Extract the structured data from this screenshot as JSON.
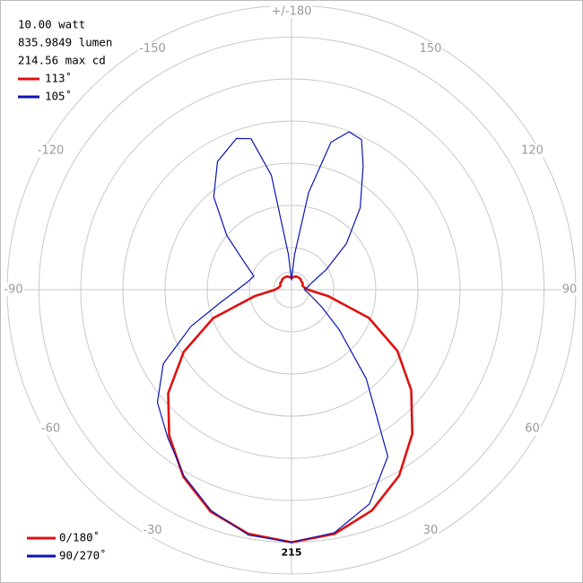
{
  "chart_data": {
    "type": "polar",
    "annotations": [
      "10.00 watt",
      "835.9849 lumen",
      "214.56 max cd"
    ],
    "beam_angles": [
      {
        "label": "113˚",
        "color": "#e01010"
      },
      {
        "label": "105˚",
        "color": "#0a14b4"
      }
    ],
    "rlim": [
      0,
      242
    ],
    "rticks": [
      215
    ],
    "angleticks": [
      {
        "value": 180,
        "label": "+/-180"
      },
      150,
      120,
      90,
      60,
      30,
      -30,
      -60,
      -90,
      -120,
      -150
    ],
    "series": [
      {
        "name": "0/180˚",
        "color": "#e01010",
        "angles": [
          -180,
          -170,
          -160,
          -150,
          -140,
          -130,
          -120,
          -110,
          -100,
          -90,
          -80,
          -70,
          -60,
          -50,
          -40,
          -30,
          -20,
          -10,
          0,
          10,
          20,
          30,
          40,
          50,
          60,
          70,
          80,
          90,
          100,
          110,
          120,
          130,
          140,
          150,
          160,
          170,
          180
        ],
        "values": [
          10,
          11,
          12,
          12,
          12,
          11,
          11,
          10,
          11,
          14,
          32,
          71,
          106,
          137,
          162,
          184,
          201,
          211,
          215,
          211,
          200,
          183,
          160,
          133,
          104,
          70,
          32,
          14,
          11,
          10,
          11,
          11,
          12,
          12,
          12,
          11,
          10
        ]
      },
      {
        "name": "90/270˚",
        "color": "#0a14b4",
        "angles": [
          -180,
          -175,
          -170,
          -165,
          -160,
          -150,
          -140,
          -130,
          -120,
          -110,
          -100,
          -90,
          -80,
          -70,
          -60,
          -50,
          -40,
          -30,
          -20,
          -10,
          0,
          10,
          20,
          30,
          40,
          50,
          60,
          70,
          80,
          90,
          100,
          110,
          120,
          130,
          140,
          150,
          155,
          160,
          165,
          170,
          175,
          180
        ],
        "values": [
          8,
          30,
          99,
          133,
          137,
          126,
          103,
          72,
          46,
          34,
          38,
          46,
          61,
          91,
          126,
          149,
          164,
          183,
          200,
          212,
          215,
          210,
          194,
          164,
          99,
          53,
          30,
          19,
          14,
          11,
          14,
          19,
          34,
          61,
          91,
          122,
          141,
          143,
          130,
          84,
          30,
          8
        ]
      }
    ]
  }
}
